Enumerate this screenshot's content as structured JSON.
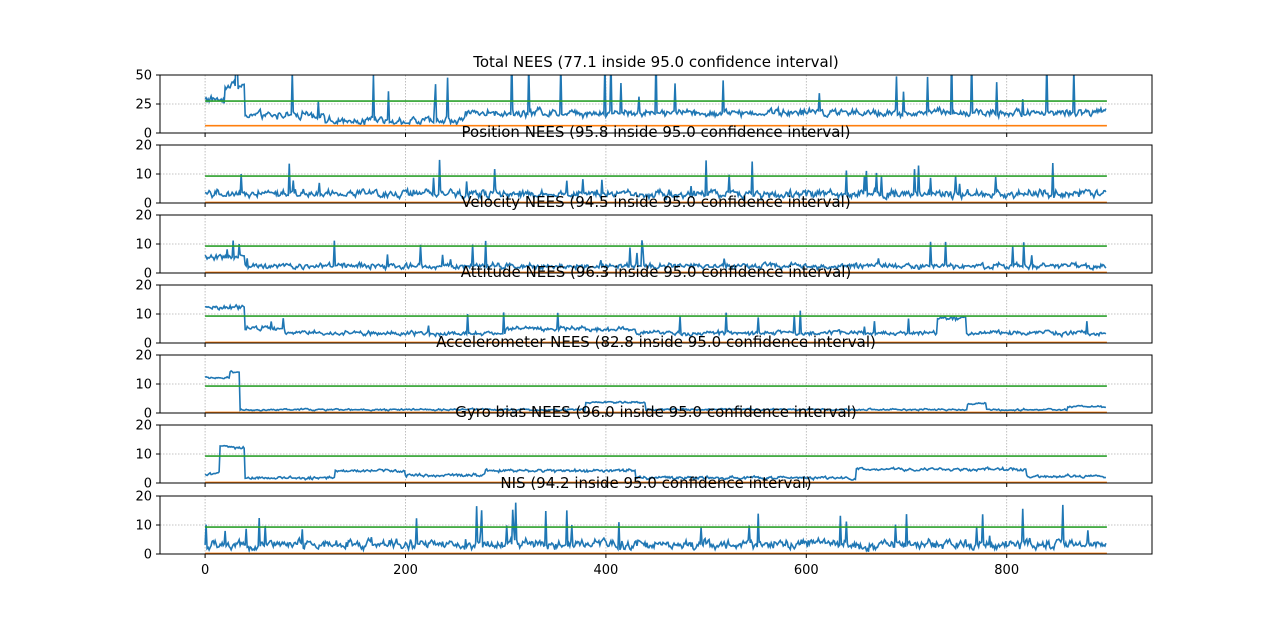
{
  "chart_data": [
    {
      "type": "line",
      "title": "Total NEES (77.1 inside 95.0 confidence interval)",
      "ylim": [
        0,
        50
      ],
      "yticks": [
        "0",
        "25",
        "50"
      ],
      "xlim": [
        -45,
        945
      ],
      "xticks": [
        0,
        200,
        400,
        600,
        800
      ],
      "grid": true,
      "lower_bound": 6.3,
      "upper_bound": 27.5,
      "series_color": "#1f77b4",
      "lower_color": "#ff7f0e",
      "upper_color": "#2ca02c"
    },
    {
      "type": "line",
      "title": "Position NEES (95.8 inside 95.0 confidence interval)",
      "ylim": [
        0,
        20
      ],
      "yticks": [
        "0",
        "10",
        "20"
      ],
      "xlim": [
        -45,
        945
      ],
      "xticks": [
        0,
        200,
        400,
        600,
        800
      ],
      "grid": true,
      "lower_bound": 0.2,
      "upper_bound": 9.3
    },
    {
      "type": "line",
      "title": "Velocity NEES (94.5 inside 95.0 confidence interval)",
      "ylim": [
        0,
        20
      ],
      "yticks": [
        "0",
        "10",
        "20"
      ],
      "xlim": [
        -45,
        945
      ],
      "xticks": [
        0,
        200,
        400,
        600,
        800
      ],
      "grid": true,
      "lower_bound": 0.2,
      "upper_bound": 9.3
    },
    {
      "type": "line",
      "title": "Attitude NEES (96.3 inside 95.0 confidence interval)",
      "ylim": [
        0,
        20
      ],
      "yticks": [
        "0",
        "10",
        "20"
      ],
      "xlim": [
        -45,
        945
      ],
      "xticks": [
        0,
        200,
        400,
        600,
        800
      ],
      "grid": true,
      "lower_bound": 0.2,
      "upper_bound": 9.3
    },
    {
      "type": "line",
      "title": "Accelerometer NEES (82.8 inside 95.0 confidence interval)",
      "ylim": [
        0,
        20
      ],
      "yticks": [
        "0",
        "10",
        "20"
      ],
      "xlim": [
        -45,
        945
      ],
      "xticks": [
        0,
        200,
        400,
        600,
        800
      ],
      "grid": true,
      "lower_bound": 0.2,
      "upper_bound": 9.3
    },
    {
      "type": "line",
      "title": "Gyro bias NEES (96.0 inside 95.0 confidence interval)",
      "ylim": [
        0,
        20
      ],
      "yticks": [
        "0",
        "10",
        "20"
      ],
      "xlim": [
        -45,
        945
      ],
      "xticks": [
        0,
        200,
        400,
        600,
        800
      ],
      "grid": true,
      "lower_bound": 0.2,
      "upper_bound": 9.3
    },
    {
      "type": "line",
      "title": "NIS (94.2 inside 95.0 confidence interval)",
      "ylim": [
        0,
        20
      ],
      "yticks": [
        "0",
        "10",
        "20"
      ],
      "xlim": [
        -45,
        945
      ],
      "xticks": [
        0,
        200,
        400,
        600,
        800
      ],
      "grid": true,
      "lower_bound": 0.2,
      "upper_bound": 9.3
    }
  ]
}
